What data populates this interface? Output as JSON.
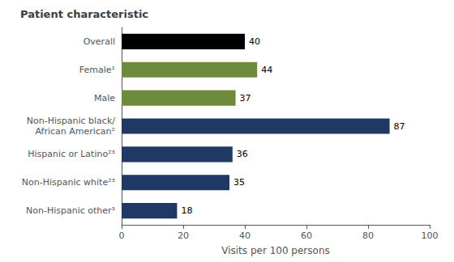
{
  "chart_data": {
    "type": "bar",
    "orientation": "horizontal",
    "title": "Patient characteristic",
    "xlabel": "Visits per 100 persons",
    "categories": [
      "Non-Hispanic other³",
      "Non-Hispanic white²³",
      "Hispanic or Latino²³",
      "Non-Hispanic black/\nAfrican American²",
      "Male",
      "Female¹",
      "Overall"
    ],
    "values": [
      18,
      35,
      36,
      87,
      37,
      44,
      40
    ],
    "colors": [
      "#1f3864",
      "#1f3864",
      "#1f3864",
      "#1f3864",
      "#6e8b3d",
      "#6e8b3d",
      "#000000"
    ],
    "xlim": [
      0,
      100
    ],
    "xticks": [
      0,
      20,
      40,
      60,
      80,
      100
    ],
    "data_labels": true,
    "grid": false
  }
}
